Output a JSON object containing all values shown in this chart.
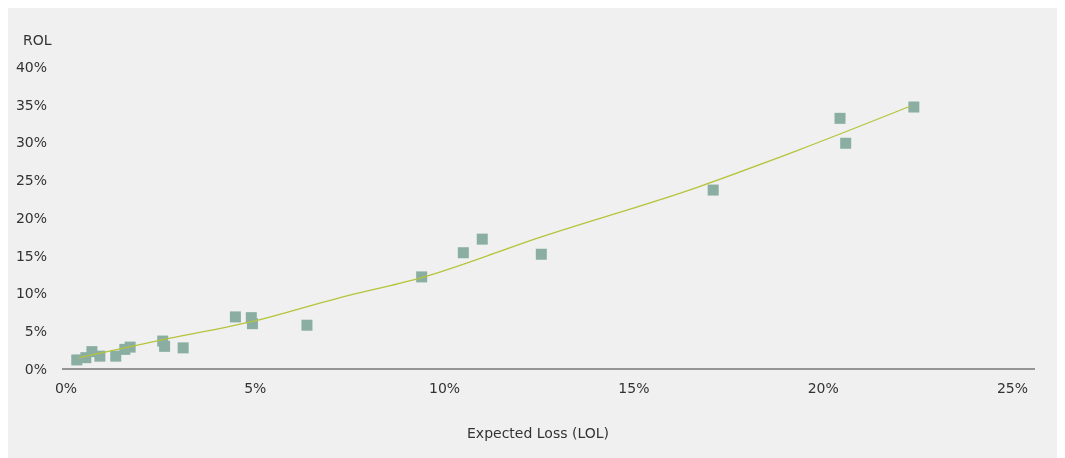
{
  "chart_data": {
    "type": "scatter",
    "xlabel": "Expected Loss (LOL)",
    "ylabel": "ROL",
    "marker": "square",
    "grid": false,
    "xlim": [
      0,
      25.7
    ],
    "xticks": [
      {
        "value": 0,
        "label": "0%"
      },
      {
        "value": 5,
        "label": "5%"
      },
      {
        "value": 10,
        "label": "10%"
      },
      {
        "value": 15,
        "label": "15%"
      },
      {
        "value": 20,
        "label": "20%"
      },
      {
        "value": 25,
        "label": "25%"
      }
    ],
    "ylim": [
      0,
      40
    ],
    "yticks": [
      {
        "value": 0,
        "label": "0%"
      },
      {
        "value": 5,
        "label": "5%"
      },
      {
        "value": 10,
        "label": "10%"
      },
      {
        "value": 15,
        "label": "15%"
      },
      {
        "value": 20,
        "label": "20%"
      },
      {
        "value": 25,
        "label": "25%"
      },
      {
        "value": 30,
        "label": "30%"
      },
      {
        "value": 35,
        "label": "35%"
      },
      {
        "value": 40,
        "label": "40%"
      }
    ],
    "series": [
      {
        "color": "#8aaea2",
        "x": [
          0.39,
          0.63,
          0.79,
          1.0,
          1.42,
          1.66,
          1.8,
          2.66,
          2.71,
          3.2,
          4.58,
          5.0,
          5.03,
          6.47,
          9.5,
          10.6,
          11.1,
          12.66,
          17.2,
          20.55,
          20.7,
          22.5
        ],
        "values": [
          1.2,
          1.5,
          2.3,
          1.7,
          1.7,
          2.6,
          2.9,
          3.7,
          3.0,
          2.8,
          6.9,
          6.8,
          6.0,
          5.8,
          12.2,
          15.4,
          17.2,
          15.2,
          23.7,
          33.2,
          29.9,
          34.7
        ]
      },
      {
        "type": "line",
        "color": "#b5c43a",
        "marker": "none",
        "x": [
          0.45,
          2.58,
          4.95,
          7.3,
          9.5,
          12.66,
          16.8,
          19.4,
          22.4
        ],
        "values": [
          1.5,
          3.8,
          6.2,
          9.4,
          12.1,
          17.5,
          24.1,
          28.9,
          34.8
        ]
      }
    ]
  }
}
